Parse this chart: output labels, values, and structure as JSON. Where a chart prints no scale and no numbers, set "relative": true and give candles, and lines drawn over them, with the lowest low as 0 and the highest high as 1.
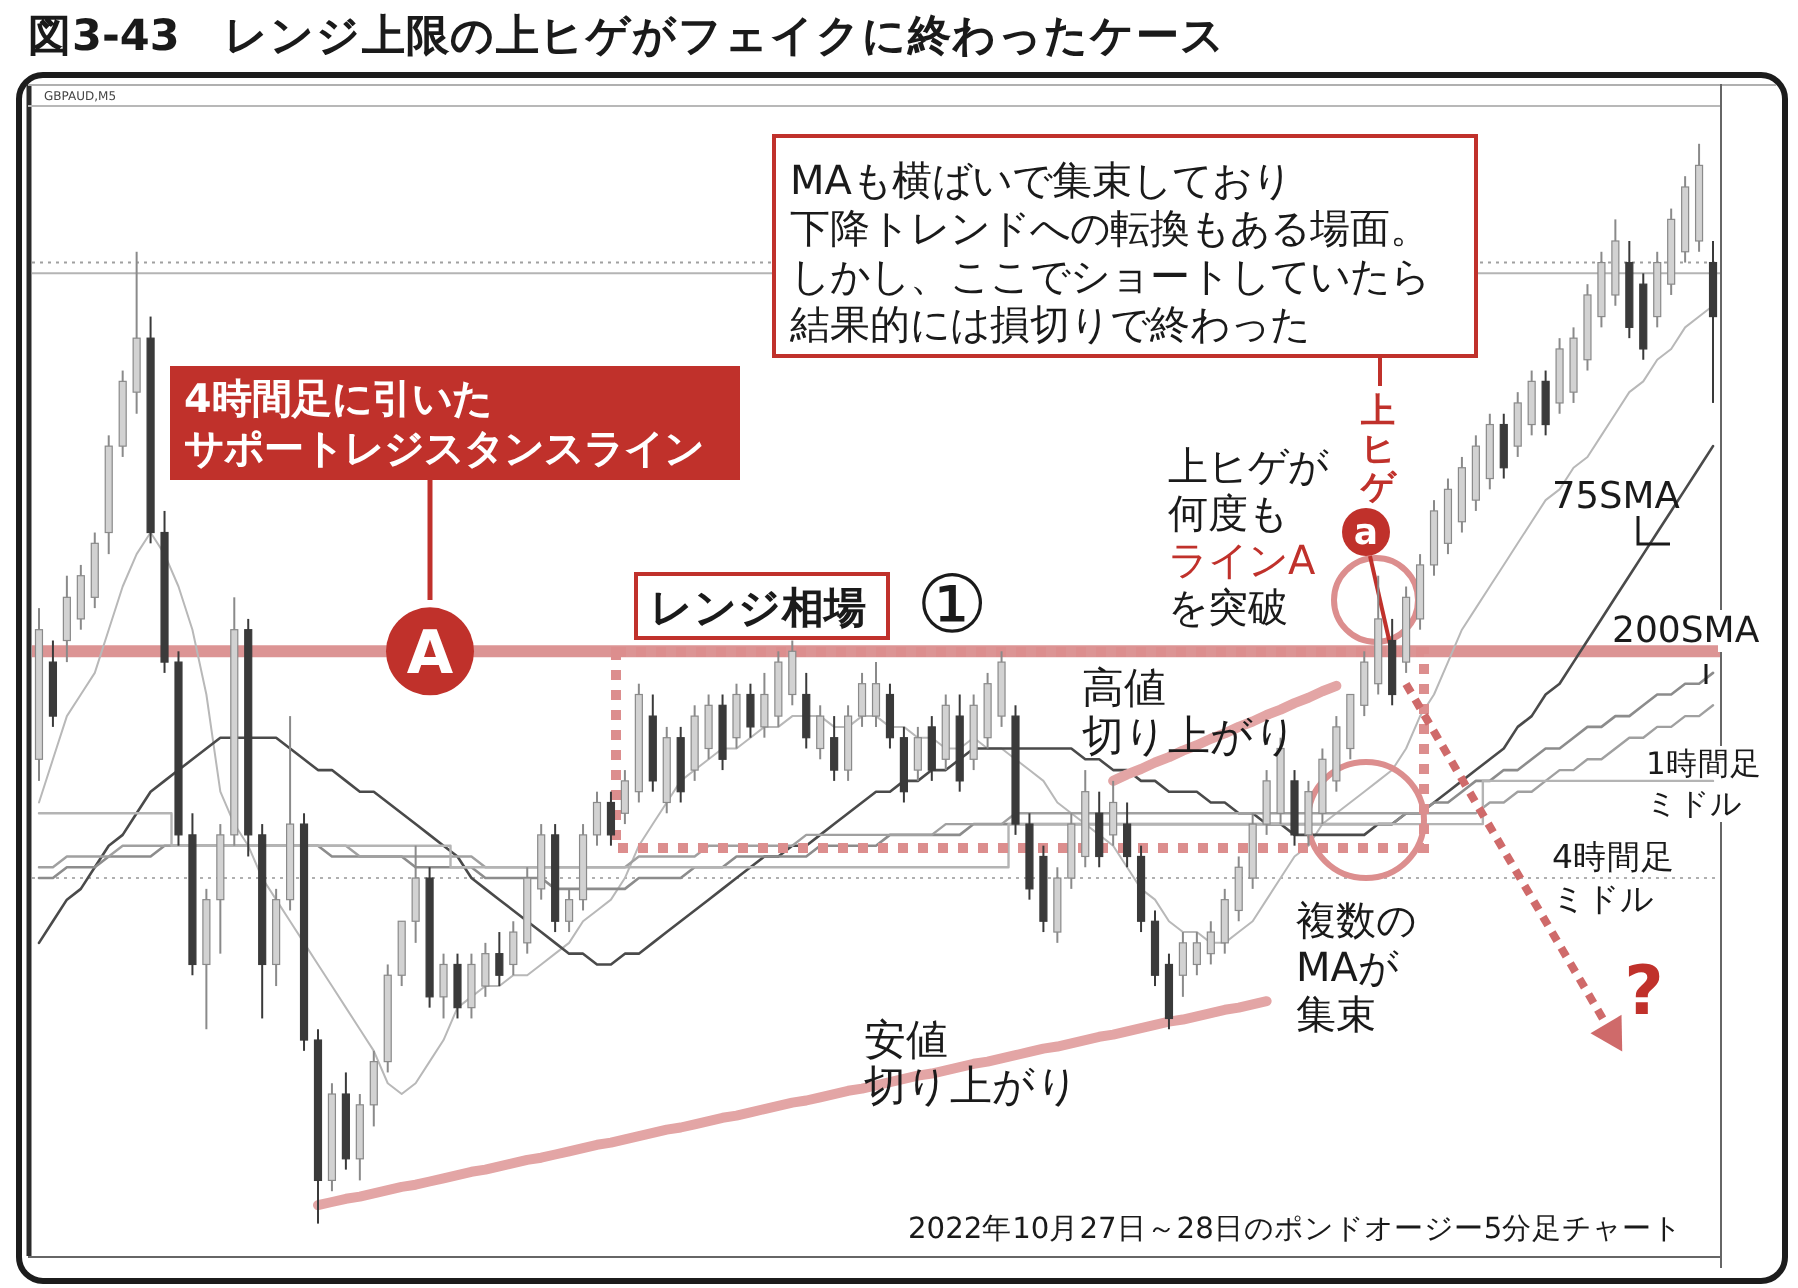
{
  "chart_data": {
    "type": "candlestick",
    "relative": true,
    "title": "図3-43　レンジ上限の上ヒゲがフェイクに終わったケース",
    "categories": [
      null,
      null,
      null,
      null,
      null,
      null,
      null,
      null,
      null,
      null,
      null,
      null,
      null,
      null,
      null,
      null,
      null,
      null,
      null,
      null,
      null,
      null,
      null,
      null,
      null,
      null,
      null,
      null,
      null,
      null,
      null,
      null,
      null,
      null,
      null,
      null,
      null,
      null,
      null,
      null,
      null,
      null,
      null,
      null,
      null,
      null,
      null,
      null,
      null,
      null,
      null,
      null,
      null,
      null,
      null,
      null,
      null,
      null,
      null,
      null,
      null,
      null,
      null,
      null,
      null,
      null,
      null,
      null,
      null,
      null,
      null,
      null,
      null,
      null,
      null,
      null,
      null,
      null,
      null,
      null,
      null,
      null,
      null,
      null,
      null,
      null,
      null,
      null,
      null,
      null,
      null,
      null,
      null,
      null,
      null,
      null,
      null,
      null,
      null,
      null,
      null,
      null,
      null,
      null,
      null,
      null,
      null,
      null,
      null,
      null,
      null,
      null,
      null,
      null,
      null,
      null,
      null,
      null,
      null,
      null,
      null
    ],
    "ohlc": [
      [
        0.43,
        0.57,
        0.41,
        0.55
      ],
      [
        0.52,
        0.54,
        0.46,
        0.47
      ],
      [
        0.54,
        0.6,
        0.52,
        0.58
      ],
      [
        0.56,
        0.61,
        0.55,
        0.6
      ],
      [
        0.58,
        0.64,
        0.57,
        0.63
      ],
      [
        0.64,
        0.73,
        0.62,
        0.72
      ],
      [
        0.72,
        0.79,
        0.71,
        0.78
      ],
      [
        0.77,
        0.9,
        0.75,
        0.82
      ],
      [
        0.82,
        0.84,
        0.63,
        0.64
      ],
      [
        0.64,
        0.66,
        0.51,
        0.52
      ],
      [
        0.52,
        0.53,
        0.35,
        0.36
      ],
      [
        0.36,
        0.38,
        0.23,
        0.24
      ],
      [
        0.24,
        0.31,
        0.18,
        0.3
      ],
      [
        0.3,
        0.37,
        0.25,
        0.36
      ],
      [
        0.36,
        0.58,
        0.35,
        0.55
      ],
      [
        0.55,
        0.56,
        0.34,
        0.36
      ],
      [
        0.36,
        0.37,
        0.19,
        0.24
      ],
      [
        0.24,
        0.31,
        0.22,
        0.3
      ],
      [
        0.3,
        0.47,
        0.29,
        0.37
      ],
      [
        0.37,
        0.38,
        0.16,
        0.17
      ],
      [
        0.17,
        0.18,
        0.0,
        0.04
      ],
      [
        0.04,
        0.13,
        0.03,
        0.12
      ],
      [
        0.12,
        0.14,
        0.05,
        0.06
      ],
      [
        0.06,
        0.12,
        0.04,
        0.11
      ],
      [
        0.11,
        0.16,
        0.09,
        0.15
      ],
      [
        0.15,
        0.24,
        0.14,
        0.23
      ],
      [
        0.23,
        0.28,
        0.22,
        0.28
      ],
      [
        0.28,
        0.35,
        0.26,
        0.32
      ],
      [
        0.32,
        0.33,
        0.2,
        0.21
      ],
      [
        0.21,
        0.25,
        0.19,
        0.24
      ],
      [
        0.24,
        0.25,
        0.19,
        0.2
      ],
      [
        0.2,
        0.25,
        0.19,
        0.24
      ],
      [
        0.22,
        0.26,
        0.21,
        0.25
      ],
      [
        0.25,
        0.27,
        0.22,
        0.23
      ],
      [
        0.24,
        0.28,
        0.23,
        0.27
      ],
      [
        0.26,
        0.33,
        0.25,
        0.32
      ],
      [
        0.31,
        0.37,
        0.3,
        0.36
      ],
      [
        0.36,
        0.37,
        0.27,
        0.28
      ],
      [
        0.28,
        0.31,
        0.27,
        0.3
      ],
      [
        0.3,
        0.37,
        0.29,
        0.36
      ],
      [
        0.36,
        0.4,
        0.35,
        0.39
      ],
      [
        0.39,
        0.4,
        0.35,
        0.36
      ],
      [
        0.38,
        0.42,
        0.37,
        0.41
      ],
      [
        0.4,
        0.5,
        0.39,
        0.49
      ],
      [
        0.47,
        0.49,
        0.4,
        0.41
      ],
      [
        0.39,
        0.46,
        0.38,
        0.45
      ],
      [
        0.45,
        0.46,
        0.39,
        0.4
      ],
      [
        0.42,
        0.48,
        0.41,
        0.47
      ],
      [
        0.44,
        0.49,
        0.43,
        0.48
      ],
      [
        0.48,
        0.49,
        0.42,
        0.43
      ],
      [
        0.45,
        0.5,
        0.44,
        0.49
      ],
      [
        0.49,
        0.5,
        0.45,
        0.46
      ],
      [
        0.46,
        0.51,
        0.45,
        0.49
      ],
      [
        0.47,
        0.53,
        0.46,
        0.52
      ],
      [
        0.49,
        0.54,
        0.48,
        0.53
      ],
      [
        0.49,
        0.51,
        0.44,
        0.45
      ],
      [
        0.44,
        0.48,
        0.43,
        0.47
      ],
      [
        0.45,
        0.47,
        0.41,
        0.42
      ],
      [
        0.42,
        0.48,
        0.41,
        0.47
      ],
      [
        0.47,
        0.51,
        0.46,
        0.5
      ],
      [
        0.47,
        0.52,
        0.46,
        0.5
      ],
      [
        0.49,
        0.5,
        0.44,
        0.45
      ],
      [
        0.45,
        0.46,
        0.39,
        0.4
      ],
      [
        0.42,
        0.46,
        0.41,
        0.45
      ],
      [
        0.46,
        0.47,
        0.41,
        0.42
      ],
      [
        0.43,
        0.49,
        0.42,
        0.48
      ],
      [
        0.47,
        0.49,
        0.4,
        0.41
      ],
      [
        0.43,
        0.49,
        0.42,
        0.48
      ],
      [
        0.45,
        0.51,
        0.44,
        0.5
      ],
      [
        0.47,
        0.53,
        0.46,
        0.52
      ],
      [
        0.47,
        0.48,
        0.36,
        0.37
      ],
      [
        0.37,
        0.38,
        0.3,
        0.31
      ],
      [
        0.34,
        0.35,
        0.27,
        0.28
      ],
      [
        0.27,
        0.33,
        0.26,
        0.32
      ],
      [
        0.32,
        0.38,
        0.31,
        0.37
      ],
      [
        0.34,
        0.42,
        0.33,
        0.4
      ],
      [
        0.38,
        0.4,
        0.33,
        0.34
      ],
      [
        0.36,
        0.41,
        0.35,
        0.39
      ],
      [
        0.37,
        0.39,
        0.33,
        0.34
      ],
      [
        0.34,
        0.35,
        0.27,
        0.28
      ],
      [
        0.28,
        0.29,
        0.22,
        0.23
      ],
      [
        0.24,
        0.25,
        0.18,
        0.19
      ],
      [
        0.23,
        0.27,
        0.21,
        0.26
      ],
      [
        0.24,
        0.27,
        0.23,
        0.26
      ],
      [
        0.25,
        0.28,
        0.24,
        0.27
      ],
      [
        0.26,
        0.31,
        0.25,
        0.3
      ],
      [
        0.29,
        0.34,
        0.28,
        0.33
      ],
      [
        0.32,
        0.38,
        0.31,
        0.37
      ],
      [
        0.37,
        0.42,
        0.36,
        0.41
      ],
      [
        0.38,
        0.45,
        0.37,
        0.44
      ],
      [
        0.41,
        0.42,
        0.35,
        0.36
      ],
      [
        0.36,
        0.41,
        0.35,
        0.4
      ],
      [
        0.38,
        0.44,
        0.37,
        0.43
      ],
      [
        0.41,
        0.47,
        0.4,
        0.46
      ],
      [
        0.44,
        0.49,
        0.43,
        0.49
      ],
      [
        0.48,
        0.53,
        0.47,
        0.52
      ],
      [
        0.5,
        0.6,
        0.49,
        0.56
      ],
      [
        0.54,
        0.56,
        0.48,
        0.49
      ],
      [
        0.52,
        0.59,
        0.51,
        0.58
      ],
      [
        0.56,
        0.62,
        0.55,
        0.61
      ],
      [
        0.61,
        0.67,
        0.6,
        0.66
      ],
      [
        0.63,
        0.69,
        0.62,
        0.68
      ],
      [
        0.65,
        0.71,
        0.64,
        0.7
      ],
      [
        0.67,
        0.73,
        0.66,
        0.72
      ],
      [
        0.69,
        0.75,
        0.68,
        0.74
      ],
      [
        0.74,
        0.75,
        0.69,
        0.7
      ],
      [
        0.72,
        0.77,
        0.71,
        0.76
      ],
      [
        0.74,
        0.79,
        0.73,
        0.78
      ],
      [
        0.78,
        0.79,
        0.73,
        0.74
      ],
      [
        0.76,
        0.82,
        0.75,
        0.81
      ],
      [
        0.77,
        0.83,
        0.76,
        0.82
      ],
      [
        0.8,
        0.87,
        0.79,
        0.86
      ],
      [
        0.84,
        0.9,
        0.83,
        0.89
      ],
      [
        0.86,
        0.93,
        0.85,
        0.91
      ],
      [
        0.89,
        0.91,
        0.82,
        0.83
      ],
      [
        0.87,
        0.88,
        0.8,
        0.81
      ],
      [
        0.84,
        0.9,
        0.83,
        0.89
      ],
      [
        0.87,
        0.94,
        0.86,
        0.93
      ],
      [
        0.9,
        0.97,
        0.89,
        0.96
      ],
      [
        0.91,
        1.0,
        0.9,
        0.98
      ],
      [
        0.89,
        0.91,
        0.76,
        0.84
      ]
    ],
    "series": [
      {
        "type": "line",
        "color": "#b8b8b8",
        "values": [
          0.39,
          0.43,
          0.47,
          0.49,
          0.51,
          0.55,
          0.59,
          0.62,
          0.64,
          0.62,
          0.59,
          0.55,
          0.49,
          0.4,
          0.37,
          0.35,
          0.32,
          0.3,
          0.28,
          0.26,
          0.24,
          0.22,
          0.2,
          0.18,
          0.16,
          0.13,
          0.12,
          0.13,
          0.15,
          0.17,
          0.2,
          0.21,
          0.22,
          0.22,
          0.23,
          0.23,
          0.24,
          0.25,
          0.26,
          0.28,
          0.29,
          0.3,
          0.32,
          0.35,
          0.37,
          0.39,
          0.41,
          0.42,
          0.43,
          0.44,
          0.44,
          0.45,
          0.46,
          0.46,
          0.47,
          0.47,
          0.47,
          0.46,
          0.46,
          0.47,
          0.47,
          0.46,
          0.46,
          0.45,
          0.45,
          0.44,
          0.44,
          0.45,
          0.44,
          0.44,
          0.43,
          0.42,
          0.41,
          0.39,
          0.38,
          0.37,
          0.36,
          0.35,
          0.33,
          0.31,
          0.3,
          0.28,
          0.27,
          0.27,
          0.26,
          0.26,
          0.27,
          0.28,
          0.3,
          0.32,
          0.34,
          0.35,
          0.37,
          0.38,
          0.39,
          0.4,
          0.41,
          0.42,
          0.44,
          0.47,
          0.49,
          0.52,
          0.55,
          0.57,
          0.59,
          0.61,
          0.63,
          0.65,
          0.67,
          0.68,
          0.7,
          0.71,
          0.73,
          0.75,
          0.77,
          0.78,
          0.8,
          0.81,
          0.83,
          0.84,
          0.85
        ]
      },
      {
        "type": "line",
        "name": "75SMA",
        "color": "#4a4a4a",
        "values": [
          0.26,
          0.28,
          0.3,
          0.31,
          0.33,
          0.35,
          0.36,
          0.38,
          0.4,
          0.41,
          0.42,
          0.43,
          0.44,
          0.45,
          0.45,
          0.45,
          0.45,
          0.45,
          0.44,
          0.43,
          0.42,
          0.42,
          0.41,
          0.4,
          0.4,
          0.39,
          0.38,
          0.37,
          0.36,
          0.35,
          0.34,
          0.32,
          0.31,
          0.3,
          0.29,
          0.28,
          0.27,
          0.26,
          0.25,
          0.25,
          0.24,
          0.24,
          0.25,
          0.25,
          0.26,
          0.27,
          0.28,
          0.29,
          0.3,
          0.31,
          0.32,
          0.33,
          0.34,
          0.34,
          0.35,
          0.35,
          0.36,
          0.37,
          0.38,
          0.39,
          0.4,
          0.4,
          0.41,
          0.41,
          0.42,
          0.42,
          0.43,
          0.44,
          0.44,
          0.44,
          0.44,
          0.44,
          0.44,
          0.44,
          0.44,
          0.43,
          0.43,
          0.42,
          0.42,
          0.41,
          0.41,
          0.4,
          0.4,
          0.4,
          0.39,
          0.39,
          0.38,
          0.38,
          0.37,
          0.37,
          0.36,
          0.36,
          0.36,
          0.36,
          0.36,
          0.36,
          0.37,
          0.37,
          0.38,
          0.38,
          0.39,
          0.4,
          0.41,
          0.42,
          0.43,
          0.44,
          0.46,
          0.47,
          0.49,
          0.5,
          0.52,
          0.54,
          0.56,
          0.58,
          0.6,
          0.62,
          0.64,
          0.66,
          0.68,
          0.7,
          0.72
        ]
      },
      {
        "type": "line",
        "name": "200SMA",
        "color": "#8c8c8c",
        "values": [
          0.32,
          0.32,
          0.33,
          0.33,
          0.33,
          0.34,
          0.34,
          0.34,
          0.34,
          0.35,
          0.35,
          0.35,
          0.35,
          0.35,
          0.35,
          0.35,
          0.35,
          0.35,
          0.35,
          0.35,
          0.35,
          0.34,
          0.34,
          0.34,
          0.34,
          0.34,
          0.34,
          0.33,
          0.33,
          0.33,
          0.33,
          0.33,
          0.32,
          0.32,
          0.32,
          0.32,
          0.32,
          0.31,
          0.31,
          0.31,
          0.31,
          0.31,
          0.31,
          0.32,
          0.32,
          0.32,
          0.32,
          0.33,
          0.33,
          0.33,
          0.34,
          0.34,
          0.34,
          0.34,
          0.34,
          0.34,
          0.35,
          0.35,
          0.35,
          0.35,
          0.35,
          0.36,
          0.36,
          0.36,
          0.36,
          0.36,
          0.36,
          0.37,
          0.37,
          0.37,
          0.37,
          0.37,
          0.37,
          0.37,
          0.37,
          0.37,
          0.37,
          0.37,
          0.37,
          0.37,
          0.37,
          0.37,
          0.37,
          0.37,
          0.37,
          0.37,
          0.37,
          0.37,
          0.37,
          0.37,
          0.37,
          0.37,
          0.37,
          0.37,
          0.37,
          0.37,
          0.37,
          0.37,
          0.38,
          0.38,
          0.39,
          0.39,
          0.4,
          0.41,
          0.41,
          0.42,
          0.42,
          0.43,
          0.44,
          0.44,
          0.45,
          0.46,
          0.46,
          0.47,
          0.47,
          0.48,
          0.49,
          0.49,
          0.5,
          0.5,
          0.51
        ]
      },
      {
        "type": "line",
        "name": "1時間足ミドル",
        "color": "#a0a0a0",
        "values": [
          0.33,
          0.33,
          0.34,
          0.34,
          0.34,
          0.34,
          0.35,
          0.35,
          0.35,
          0.35,
          0.35,
          0.35,
          0.35,
          0.35,
          0.35,
          0.35,
          0.35,
          0.35,
          0.35,
          0.35,
          0.35,
          0.35,
          0.35,
          0.34,
          0.34,
          0.34,
          0.34,
          0.34,
          0.34,
          0.34,
          0.34,
          0.34,
          0.33,
          0.33,
          0.33,
          0.33,
          0.33,
          0.33,
          0.33,
          0.33,
          0.33,
          0.33,
          0.33,
          0.34,
          0.34,
          0.34,
          0.34,
          0.34,
          0.35,
          0.35,
          0.35,
          0.35,
          0.35,
          0.35,
          0.35,
          0.36,
          0.36,
          0.36,
          0.36,
          0.36,
          0.36,
          0.36,
          0.36,
          0.36,
          0.36,
          0.37,
          0.37,
          0.37,
          0.37,
          0.37,
          0.38,
          0.38,
          0.38,
          0.38,
          0.38,
          0.38,
          0.38,
          0.38,
          0.38,
          0.38,
          0.38,
          0.38,
          0.38,
          0.38,
          0.38,
          0.38,
          0.38,
          0.38,
          0.38,
          0.38,
          0.38,
          0.38,
          0.38,
          0.38,
          0.38,
          0.38,
          0.38,
          0.38,
          0.38,
          0.38,
          0.38,
          0.38,
          0.38,
          0.38,
          0.39,
          0.39,
          0.4,
          0.4,
          0.41,
          0.42,
          0.42,
          0.43,
          0.43,
          0.44,
          0.45,
          0.45,
          0.46,
          0.46,
          0.47,
          0.47,
          0.48
        ]
      },
      {
        "type": "step",
        "name": "4時間足ミドル",
        "color": "#b4b4b4",
        "values": [
          0.38,
          0.38,
          0.38,
          0.38,
          0.38,
          0.38,
          0.38,
          0.38,
          0.38,
          0.38,
          0.35,
          0.35,
          0.35,
          0.35,
          0.35,
          0.35,
          0.35,
          0.35,
          0.35,
          0.35,
          0.35,
          0.35,
          0.35,
          0.35,
          0.35,
          0.35,
          0.35,
          0.35,
          0.35,
          0.35,
          0.33,
          0.33,
          0.33,
          0.33,
          0.33,
          0.33,
          0.33,
          0.33,
          0.33,
          0.33,
          0.33,
          0.33,
          0.33,
          0.33,
          0.33,
          0.33,
          0.33,
          0.33,
          0.33,
          0.33,
          0.33,
          0.33,
          0.33,
          0.33,
          0.33,
          0.33,
          0.33,
          0.33,
          0.33,
          0.33,
          0.33,
          0.33,
          0.33,
          0.33,
          0.33,
          0.33,
          0.33,
          0.33,
          0.33,
          0.33,
          0.37,
          0.37,
          0.37,
          0.37,
          0.37,
          0.37,
          0.37,
          0.37,
          0.37,
          0.37,
          0.37,
          0.37,
          0.37,
          0.37,
          0.37,
          0.37,
          0.37,
          0.37,
          0.37,
          0.37,
          0.37,
          0.37,
          0.37,
          0.37,
          0.37,
          0.37,
          0.37,
          0.37,
          0.37,
          0.37,
          0.37,
          0.37,
          0.37,
          0.37,
          0.41,
          0.41,
          0.41,
          0.41,
          0.41,
          0.41,
          0.41,
          0.41,
          0.41,
          0.41,
          0.41,
          0.41,
          0.41,
          0.41,
          0.41,
          0.41,
          0.41
        ]
      },
      {
        "type": "line",
        "name": "安値切り上がり",
        "color": "#e3a5a5",
        "values": [
          null,
          null,
          null,
          null,
          null,
          null,
          null,
          null,
          null,
          null,
          null,
          null,
          null,
          null,
          null,
          null,
          null,
          null,
          null,
          null,
          0.017,
          0.02,
          0.023,
          0.025,
          0.028,
          0.031,
          0.034,
          0.036,
          0.039,
          0.042,
          0.045,
          0.048,
          0.05,
          0.053,
          0.056,
          0.059,
          0.061,
          0.064,
          0.067,
          0.07,
          0.073,
          0.075,
          0.078,
          0.081,
          0.084,
          0.087,
          0.089,
          0.092,
          0.095,
          0.098,
          0.1,
          0.103,
          0.106,
          0.109,
          0.112,
          0.114,
          0.117,
          0.12,
          0.123,
          0.125,
          0.128,
          0.131,
          0.134,
          0.137,
          0.139,
          0.142,
          0.145,
          0.148,
          0.15,
          0.153,
          0.156,
          0.159,
          0.162,
          0.164,
          0.167,
          0.17,
          0.173,
          0.175,
          0.178,
          0.181,
          0.184,
          0.187,
          0.189,
          0.192,
          0.195,
          0.198,
          0.2,
          0.203,
          0.206,
          null,
          null,
          null,
          null,
          null,
          null,
          null,
          null,
          null,
          null,
          null,
          null,
          null,
          null,
          null,
          null,
          null,
          null,
          null,
          null,
          null,
          null,
          null,
          null,
          null,
          null,
          null,
          null,
          null,
          null,
          null,
          null
        ]
      },
      {
        "type": "line",
        "name": "高値切り上がり",
        "color": "#e3a5a5",
        "values": [
          null,
          null,
          null,
          null,
          null,
          null,
          null,
          null,
          null,
          null,
          null,
          null,
          null,
          null,
          null,
          null,
          null,
          null,
          null,
          null,
          null,
          null,
          null,
          null,
          null,
          null,
          null,
          null,
          null,
          null,
          null,
          null,
          null,
          null,
          null,
          null,
          null,
          null,
          null,
          null,
          null,
          null,
          null,
          null,
          null,
          null,
          null,
          null,
          null,
          null,
          null,
          null,
          null,
          null,
          null,
          null,
          null,
          null,
          null,
          null,
          null,
          null,
          null,
          null,
          null,
          null,
          null,
          null,
          null,
          null,
          null,
          null,
          null,
          null,
          null,
          null,
          null,
          0.41,
          0.416,
          0.421,
          0.427,
          0.432,
          0.438,
          0.443,
          0.449,
          0.454,
          0.46,
          0.465,
          0.471,
          0.476,
          0.482,
          0.487,
          0.493,
          0.498,
          null,
          null,
          null,
          null,
          null,
          null,
          null,
          null,
          null,
          null,
          null,
          null,
          null,
          null,
          null,
          null,
          null,
          null,
          null,
          null,
          null,
          null,
          null,
          null,
          null,
          null,
          null
        ]
      }
    ],
    "ref_lines": [
      {
        "axis": "y",
        "value": 0.53,
        "label": "A",
        "color": "#dc9494"
      },
      {
        "axis": "y",
        "value": 0.89,
        "color": "#a0a0a0",
        "line_style": "dotted"
      },
      {
        "axis": "y",
        "value": 0.88,
        "color": "#b4b4b4"
      },
      {
        "axis": "y",
        "value": 0.32,
        "color": "#b0b0b0",
        "line_style": "dotted"
      }
    ],
    "annotations": [
      "4時間足に引いたサポートレジスタンスライン",
      "レンジ相場",
      "①",
      "MAも横ばいで集束しており下降トレンドへの転換もある場面。しかし、ここでショートしていたら結果的には損切りで終わった",
      "上ヒゲ",
      "a",
      "上ヒゲが何度もラインAを突破",
      "複数のMAが集束",
      "?",
      "2022年10月27日～28日のポンドオージー5分足チャート",
      "GBPAUD,M5"
    ]
  }
}
